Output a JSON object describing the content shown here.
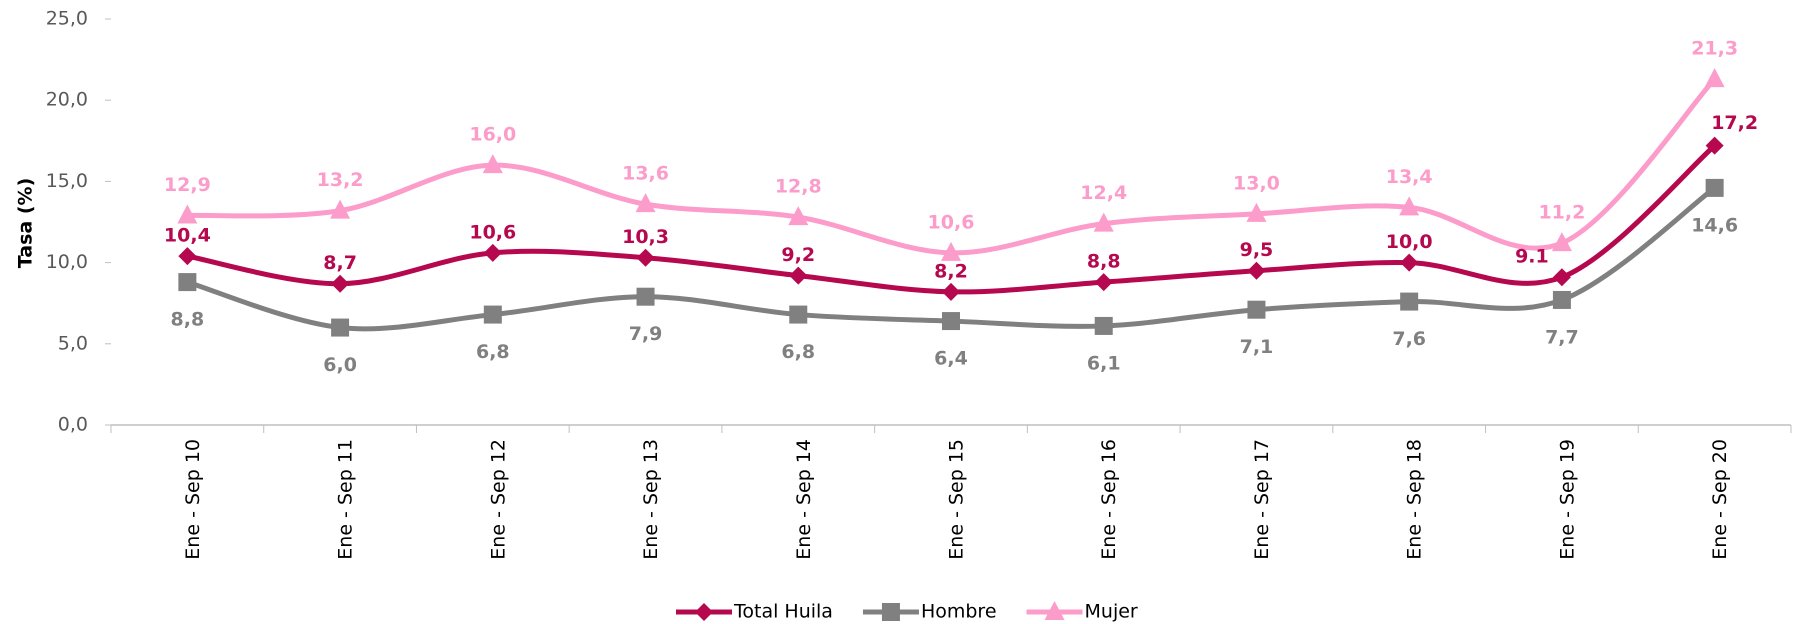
{
  "chart_data": {
    "type": "line",
    "y_label": "Tasa (%)",
    "categories": [
      "Ene - Sep 10",
      "Ene - Sep 11",
      "Ene - Sep 12",
      "Ene - Sep 13",
      "Ene - Sep 14",
      "Ene - Sep 15",
      "Ene - Sep 16",
      "Ene - Sep 17",
      "Ene - Sep 18",
      "Ene - Sep 19",
      "Ene - Sep 20"
    ],
    "series": [
      {
        "name": "Total Huila",
        "color": "#b5084f",
        "marker": "diamond",
        "values": [
          10.4,
          8.7,
          10.6,
          10.3,
          9.2,
          8.2,
          8.8,
          9.5,
          10.0,
          9.1,
          17.2
        ],
        "value_labels": [
          "10,4",
          "8,7",
          "10,6",
          "10,3",
          "9,2",
          "8,2",
          "8,8",
          "9,5",
          "10,0",
          "9.1",
          "17,2"
        ]
      },
      {
        "name": "Hombre",
        "color": "#808080",
        "marker": "square",
        "values": [
          8.8,
          6.0,
          6.8,
          7.9,
          6.8,
          6.4,
          6.1,
          7.1,
          7.6,
          7.7,
          14.6
        ],
        "value_labels": [
          "8,8",
          "6,0",
          "6,8",
          "7,9",
          "6,8",
          "6,4",
          "6,1",
          "7,1",
          "7,6",
          "7,7",
          "14,6"
        ]
      },
      {
        "name": "Mujer",
        "color": "#fc9cca",
        "marker": "triangle",
        "values": [
          12.9,
          13.2,
          16.0,
          13.6,
          12.8,
          10.6,
          12.4,
          13.0,
          13.4,
          11.2,
          21.3
        ],
        "value_labels": [
          "12,9",
          "13,2",
          "16,0",
          "13,6",
          "12,8",
          "10,6",
          "12,4",
          "13,0",
          "13,4",
          "11,2",
          "21,3"
        ]
      }
    ],
    "ylim": [
      0,
      25
    ],
    "yticks": [
      {
        "value": 0,
        "label": "0,0"
      },
      {
        "value": 5,
        "label": "5,0"
      },
      {
        "value": 10,
        "label": "10,0"
      },
      {
        "value": 15,
        "label": "15,0"
      },
      {
        "value": 20,
        "label": "20,0"
      },
      {
        "value": 25,
        "label": "25,0"
      }
    ],
    "grid": false,
    "legend": "bottom"
  }
}
